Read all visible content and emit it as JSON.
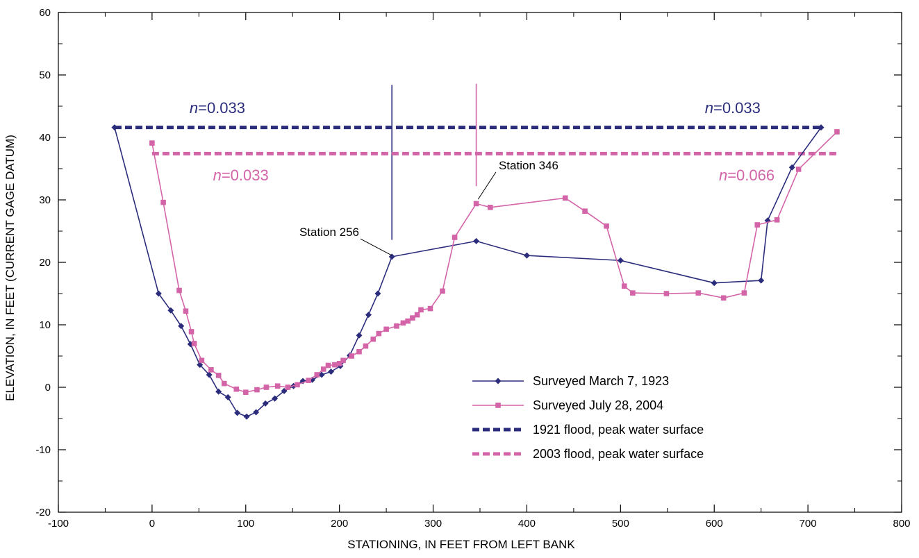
{
  "chart_data": {
    "type": "line",
    "xlabel": "STATIONING, IN FEET FROM LEFT BANK",
    "ylabel": "ELEVATION, IN FEET (CURRENT GAGE DATUM)",
    "xlim": [
      -100,
      800
    ],
    "ylim": [
      -20,
      60
    ],
    "x_ticks": [
      -100,
      0,
      100,
      200,
      300,
      400,
      500,
      600,
      700,
      800
    ],
    "y_ticks": [
      -20,
      -10,
      0,
      10,
      20,
      30,
      40,
      50,
      60
    ],
    "grid": false,
    "legend_position": "bottom-right",
    "colors": {
      "navy": "#2b2d7c",
      "pink": "#d464a8"
    },
    "series": [
      {
        "name": "Surveyed March 7, 1923",
        "color": "#2b2d7c",
        "marker": "diamond",
        "points": [
          [
            -40,
            41.6
          ],
          [
            7,
            15.0
          ],
          [
            20,
            12.3
          ],
          [
            31,
            9.8
          ],
          [
            41,
            6.9
          ],
          [
            51,
            3.6
          ],
          [
            61,
            2.0
          ],
          [
            71,
            -0.7
          ],
          [
            81,
            -1.6
          ],
          [
            91,
            -4.1
          ],
          [
            101,
            -4.7
          ],
          [
            111,
            -4.0
          ],
          [
            121,
            -2.6
          ],
          [
            131,
            -1.8
          ],
          [
            141,
            -0.6
          ],
          [
            151,
            0.2
          ],
          [
            161,
            1.0
          ],
          [
            171,
            1.2
          ],
          [
            181,
            2.0
          ],
          [
            191,
            2.5
          ],
          [
            201,
            3.4
          ],
          [
            211,
            5.1
          ],
          [
            221,
            8.3
          ],
          [
            231,
            11.6
          ],
          [
            241,
            15.0
          ],
          [
            256,
            20.9
          ],
          [
            346,
            23.4
          ],
          [
            400,
            21.1
          ],
          [
            500,
            20.3
          ],
          [
            600,
            16.7
          ],
          [
            650,
            17.1
          ],
          [
            657,
            26.7
          ],
          [
            683,
            35.2
          ],
          [
            714,
            41.6
          ]
        ]
      },
      {
        "name": "Surveyed July 28, 2004",
        "color": "#d464a8",
        "marker": "square",
        "points": [
          [
            0,
            39.1
          ],
          [
            12,
            29.6
          ],
          [
            29,
            15.5
          ],
          [
            36,
            12.2
          ],
          [
            42,
            8.9
          ],
          [
            45,
            7.0
          ],
          [
            53,
            4.3
          ],
          [
            63,
            2.8
          ],
          [
            71,
            1.9
          ],
          [
            77,
            0.6
          ],
          [
            90,
            -0.3
          ],
          [
            100,
            -0.8
          ],
          [
            112,
            -0.4
          ],
          [
            122,
            0.0
          ],
          [
            134,
            0.2
          ],
          [
            145,
            0.0
          ],
          [
            155,
            0.4
          ],
          [
            167,
            1.1
          ],
          [
            176,
            2.0
          ],
          [
            183,
            2.9
          ],
          [
            188,
            3.5
          ],
          [
            195,
            3.6
          ],
          [
            200,
            3.8
          ],
          [
            204,
            4.3
          ],
          [
            213,
            5.0
          ],
          [
            221,
            5.7
          ],
          [
            228,
            6.6
          ],
          [
            236,
            7.7
          ],
          [
            242,
            8.6
          ],
          [
            250,
            9.3
          ],
          [
            261,
            9.8
          ],
          [
            268,
            10.3
          ],
          [
            273,
            10.6
          ],
          [
            278,
            11.1
          ],
          [
            283,
            11.6
          ],
          [
            287,
            12.4
          ],
          [
            297,
            12.6
          ],
          [
            310,
            15.4
          ],
          [
            323,
            24.0
          ],
          [
            346,
            29.4
          ],
          [
            361,
            28.8
          ],
          [
            441,
            30.3
          ],
          [
            462,
            28.2
          ],
          [
            485,
            25.8
          ],
          [
            504,
            16.2
          ],
          [
            513,
            15.1
          ],
          [
            549,
            15.0
          ],
          [
            583,
            15.1
          ],
          [
            610,
            14.3
          ],
          [
            632,
            15.1
          ],
          [
            646,
            26.0
          ],
          [
            667,
            26.8
          ],
          [
            690,
            34.9
          ],
          [
            731,
            40.9
          ]
        ]
      },
      {
        "name": "1921 flood, peak water surface",
        "color": "#2b2d7c",
        "style": "dashed",
        "points": [
          [
            -40,
            41.6
          ],
          [
            714,
            41.6
          ]
        ]
      },
      {
        "name": "2003 flood, peak water surface",
        "color": "#d464a8",
        "style": "dashed",
        "points": [
          [
            0,
            37.4
          ],
          [
            731,
            37.4
          ]
        ]
      }
    ],
    "reference_lines": [
      {
        "x": 256,
        "y_from": 23.6,
        "y_to": 48.4,
        "color": "#2b2d7c"
      },
      {
        "x": 346,
        "y_from": 32.2,
        "y_to": 48.6,
        "color": "#d464a8"
      }
    ],
    "annotations": [
      {
        "prefix": "n",
        "text": "=0.033",
        "x": 40,
        "y": 43.9,
        "color": "#2b2d7c"
      },
      {
        "prefix": "n",
        "text": "=0.033",
        "x": 590,
        "y": 43.9,
        "color": "#2b2d7c"
      },
      {
        "prefix": "n",
        "text": "=0.033",
        "x": 65,
        "y": 33.1,
        "color": "#d464a8"
      },
      {
        "prefix": "n",
        "text": "=0.066",
        "x": 605,
        "y": 33.1,
        "color": "#d464a8"
      },
      {
        "text": "Station 256",
        "x": 221,
        "y": 24.2,
        "color": "#000000",
        "anchor": "end",
        "leader_to": [
          256,
          21.1
        ]
      },
      {
        "text": "Station 346",
        "x": 370,
        "y": 34.9,
        "color": "#000000",
        "anchor": "start",
        "leader_to": [
          348,
          30.1
        ]
      }
    ]
  }
}
